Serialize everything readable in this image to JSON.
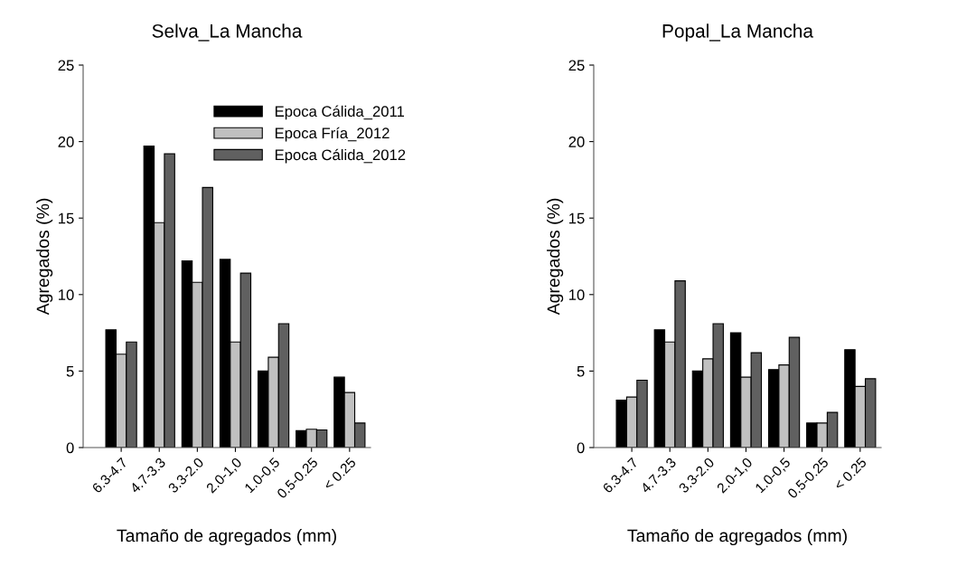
{
  "chart_data": [
    {
      "type": "bar",
      "title": "Selva_La Mancha",
      "xlabel": "Tamaño de agregados (mm)",
      "ylabel": "Agregados (%)",
      "categories": [
        "6.3-4.7",
        "4.7-3.3",
        "3.3-2.0",
        "2.0-1,0",
        "1.0-0,5",
        "0.5-0.25",
        "< 0.25"
      ],
      "ylim": [
        0,
        25
      ],
      "yticks": [
        0,
        5,
        10,
        15,
        20,
        25
      ],
      "grid": false,
      "legend": "top right",
      "series": [
        {
          "name": "Epoca Cálida_2011",
          "color": "#000000",
          "values": [
            7.7,
            19.7,
            12.2,
            12.3,
            5.0,
            1.1,
            4.6
          ]
        },
        {
          "name": "Epoca Fría_2012",
          "color": "#c0c0c0",
          "values": [
            6.1,
            14.7,
            10.8,
            6.9,
            5.9,
            1.2,
            3.6
          ]
        },
        {
          "name": "Epoca Cálida_2012",
          "color": "#606060",
          "values": [
            6.9,
            19.2,
            17.0,
            11.4,
            8.1,
            1.15,
            1.6
          ]
        }
      ]
    },
    {
      "type": "bar",
      "title": "Popal_La Mancha",
      "xlabel": "Tamaño de agregados (mm)",
      "ylabel": "Agregados (%)",
      "categories": [
        "6.3-4.7",
        "4.7-3.3",
        "3.3-2.0",
        "2.0-1,0",
        "1.0-0,5",
        "0.5-0.25",
        "< 0.25"
      ],
      "ylim": [
        0,
        25
      ],
      "yticks": [
        0,
        5,
        10,
        15,
        20,
        25
      ],
      "grid": false,
      "series": [
        {
          "color": "#000000",
          "values": [
            3.1,
            7.7,
            5.0,
            7.5,
            5.1,
            1.6,
            6.4
          ]
        },
        {
          "color": "#c0c0c0",
          "values": [
            3.3,
            6.9,
            5.8,
            4.6,
            5.4,
            1.6,
            4.0
          ]
        },
        {
          "color": "#606060",
          "values": [
            4.4,
            10.9,
            8.1,
            6.2,
            7.2,
            2.3,
            4.5
          ]
        }
      ]
    }
  ]
}
